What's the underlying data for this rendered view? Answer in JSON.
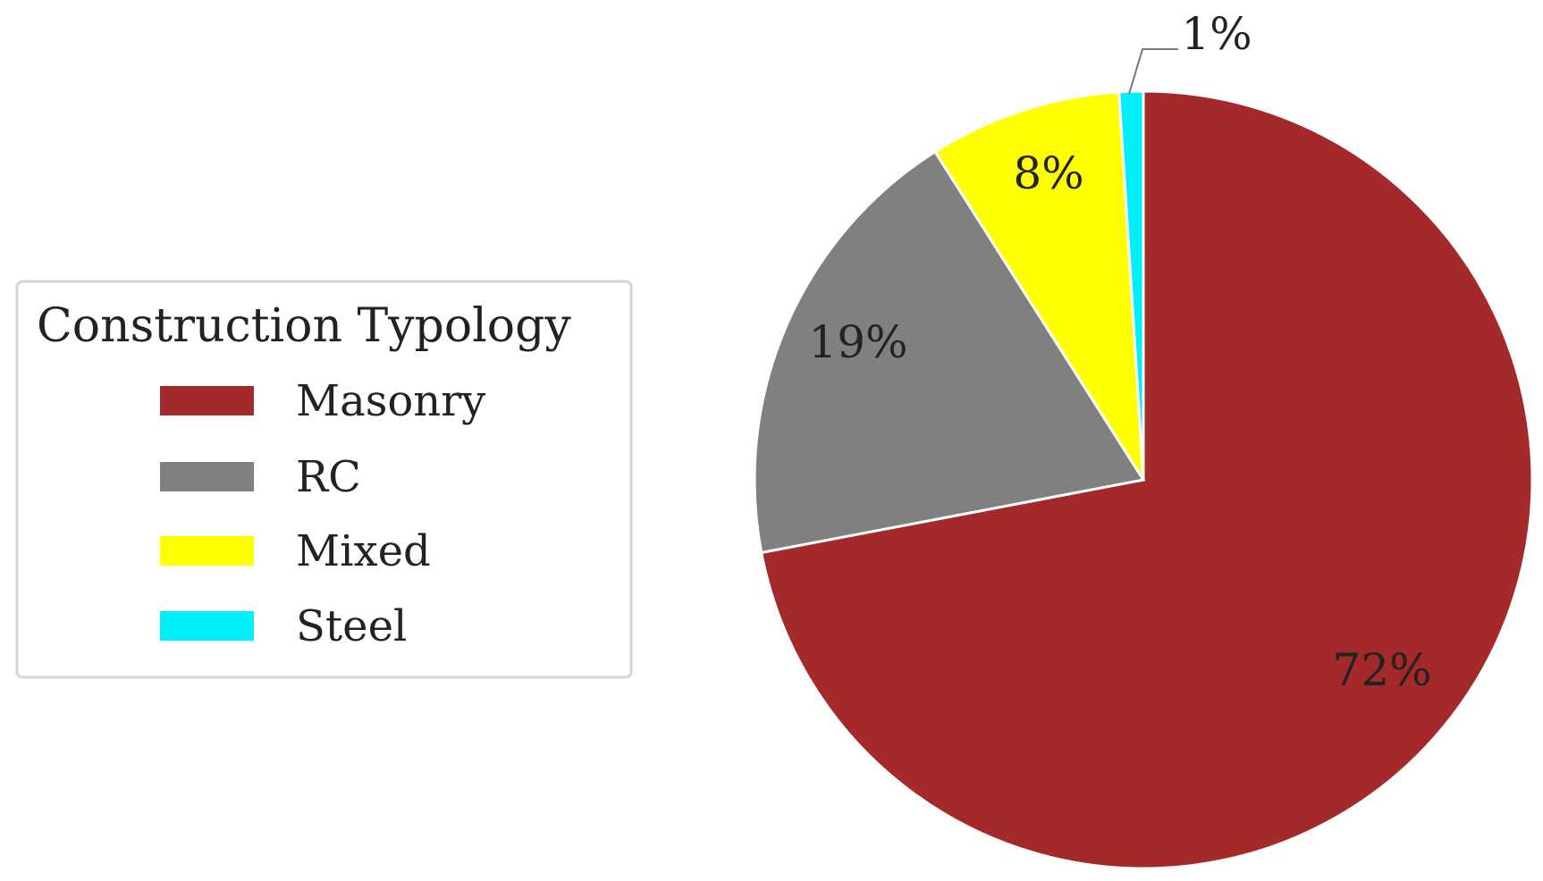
{
  "chart_data": {
    "type": "pie",
    "title": "",
    "legend": {
      "title": "Construction Typology",
      "placement": "left"
    },
    "categories": [
      "Masonry",
      "RC",
      "Mixed",
      "Steel"
    ],
    "values": [
      72,
      19,
      8,
      1
    ],
    "labels": [
      "72%",
      "19%",
      "8%",
      "1%"
    ],
    "colors": [
      "#a3292b",
      "#808080",
      "#ffff00",
      "#00f0f8"
    ],
    "start_angle": "top, clockwise"
  }
}
